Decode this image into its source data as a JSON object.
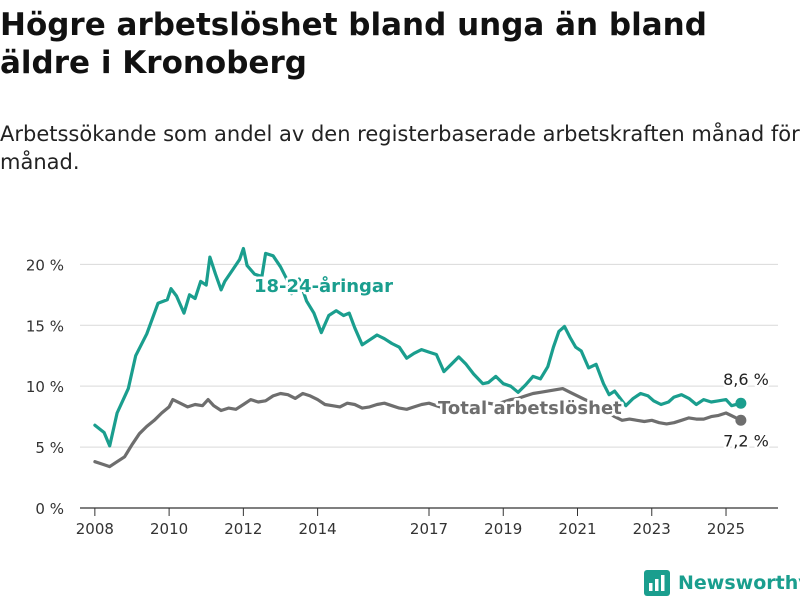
{
  "header": {
    "title": "Högre arbetslöshet bland unga än bland äldre i Kronoberg",
    "subtitle": "Arbetssökande som andel av den registerbaserade arbetskraften månad för månad."
  },
  "brand": {
    "name": "Newsworthy",
    "icon": "newsworthy-logo-icon"
  },
  "colors": {
    "youth": "#1a9e8e",
    "total": "#6e6e6e",
    "grid": "#d9d9d9",
    "axis": "#333333"
  },
  "chart_data": {
    "type": "line",
    "x_ticks": [
      "2008",
      "2010",
      "2012",
      "2014",
      "2017",
      "2019",
      "2021",
      "2023",
      "2025"
    ],
    "y_ticks": [
      "0 %",
      "5 %",
      "10 %",
      "15 %",
      "20 %"
    ],
    "ylim": [
      0,
      22
    ],
    "xlim": [
      2007.6,
      2026.4
    ],
    "grid": true,
    "series": [
      {
        "name": "18-24-åringar",
        "end_label": "8,6 %",
        "points": [
          [
            2008.0,
            6.8
          ],
          [
            2008.25,
            6.2
          ],
          [
            2008.4,
            5.1
          ],
          [
            2008.6,
            7.8
          ],
          [
            2008.9,
            9.8
          ],
          [
            2009.1,
            12.5
          ],
          [
            2009.4,
            14.3
          ],
          [
            2009.7,
            16.8
          ],
          [
            2009.95,
            17.1
          ],
          [
            2010.05,
            18.0
          ],
          [
            2010.2,
            17.4
          ],
          [
            2010.4,
            16.0
          ],
          [
            2010.55,
            17.5
          ],
          [
            2010.7,
            17.2
          ],
          [
            2010.85,
            18.6
          ],
          [
            2011.0,
            18.3
          ],
          [
            2011.1,
            20.6
          ],
          [
            2011.25,
            19.2
          ],
          [
            2011.4,
            17.9
          ],
          [
            2011.5,
            18.6
          ],
          [
            2011.7,
            19.5
          ],
          [
            2011.9,
            20.4
          ],
          [
            2012.0,
            21.3
          ],
          [
            2012.1,
            19.9
          ],
          [
            2012.3,
            19.2
          ],
          [
            2012.5,
            19.0
          ],
          [
            2012.6,
            20.9
          ],
          [
            2012.8,
            20.7
          ],
          [
            2013.0,
            19.8
          ],
          [
            2013.15,
            18.9
          ],
          [
            2013.3,
            17.6
          ],
          [
            2013.5,
            18.8
          ],
          [
            2013.7,
            17.0
          ],
          [
            2013.9,
            16.0
          ],
          [
            2014.1,
            14.4
          ],
          [
            2014.3,
            15.8
          ],
          [
            2014.5,
            16.2
          ],
          [
            2014.7,
            15.8
          ],
          [
            2014.85,
            16.0
          ],
          [
            2015.0,
            14.8
          ],
          [
            2015.2,
            13.4
          ],
          [
            2015.4,
            13.8
          ],
          [
            2015.6,
            14.2
          ],
          [
            2015.8,
            13.9
          ],
          [
            2016.0,
            13.5
          ],
          [
            2016.2,
            13.2
          ],
          [
            2016.4,
            12.3
          ],
          [
            2016.6,
            12.7
          ],
          [
            2016.8,
            13.0
          ],
          [
            2017.0,
            12.8
          ],
          [
            2017.2,
            12.6
          ],
          [
            2017.4,
            11.2
          ],
          [
            2017.6,
            11.8
          ],
          [
            2017.8,
            12.4
          ],
          [
            2018.0,
            11.8
          ],
          [
            2018.2,
            11.0
          ],
          [
            2018.45,
            10.2
          ],
          [
            2018.6,
            10.3
          ],
          [
            2018.8,
            10.8
          ],
          [
            2019.0,
            10.2
          ],
          [
            2019.2,
            10.0
          ],
          [
            2019.4,
            9.5
          ],
          [
            2019.6,
            10.1
          ],
          [
            2019.8,
            10.8
          ],
          [
            2020.0,
            10.6
          ],
          [
            2020.2,
            11.6
          ],
          [
            2020.35,
            13.2
          ],
          [
            2020.5,
            14.5
          ],
          [
            2020.65,
            14.9
          ],
          [
            2020.8,
            14.0
          ],
          [
            2020.95,
            13.2
          ],
          [
            2021.1,
            12.9
          ],
          [
            2021.3,
            11.5
          ],
          [
            2021.5,
            11.8
          ],
          [
            2021.7,
            10.2
          ],
          [
            2021.85,
            9.3
          ],
          [
            2022.0,
            9.6
          ],
          [
            2022.15,
            9.0
          ],
          [
            2022.3,
            8.4
          ],
          [
            2022.5,
            9.0
          ],
          [
            2022.7,
            9.4
          ],
          [
            2022.9,
            9.2
          ],
          [
            2023.05,
            8.8
          ],
          [
            2023.25,
            8.5
          ],
          [
            2023.45,
            8.7
          ],
          [
            2023.6,
            9.1
          ],
          [
            2023.8,
            9.3
          ],
          [
            2024.0,
            9.0
          ],
          [
            2024.2,
            8.5
          ],
          [
            2024.4,
            8.9
          ],
          [
            2024.6,
            8.7
          ],
          [
            2024.8,
            8.8
          ],
          [
            2025.0,
            8.9
          ],
          [
            2025.15,
            8.4
          ],
          [
            2025.4,
            8.6
          ]
        ]
      },
      {
        "name": "Total arbetslöshet",
        "end_label": "7,2 %",
        "points": [
          [
            2008.0,
            3.8
          ],
          [
            2008.2,
            3.6
          ],
          [
            2008.4,
            3.4
          ],
          [
            2008.6,
            3.8
          ],
          [
            2008.8,
            4.2
          ],
          [
            2009.0,
            5.2
          ],
          [
            2009.2,
            6.1
          ],
          [
            2009.4,
            6.7
          ],
          [
            2009.6,
            7.2
          ],
          [
            2009.8,
            7.8
          ],
          [
            2010.0,
            8.3
          ],
          [
            2010.1,
            8.9
          ],
          [
            2010.3,
            8.6
          ],
          [
            2010.5,
            8.3
          ],
          [
            2010.7,
            8.5
          ],
          [
            2010.9,
            8.4
          ],
          [
            2011.05,
            8.9
          ],
          [
            2011.2,
            8.4
          ],
          [
            2011.4,
            8.0
          ],
          [
            2011.6,
            8.2
          ],
          [
            2011.8,
            8.1
          ],
          [
            2012.0,
            8.5
          ],
          [
            2012.2,
            8.9
          ],
          [
            2012.4,
            8.7
          ],
          [
            2012.6,
            8.8
          ],
          [
            2012.8,
            9.2
          ],
          [
            2013.0,
            9.4
          ],
          [
            2013.2,
            9.3
          ],
          [
            2013.4,
            9.0
          ],
          [
            2013.6,
            9.4
          ],
          [
            2013.8,
            9.2
          ],
          [
            2014.0,
            8.9
          ],
          [
            2014.2,
            8.5
          ],
          [
            2014.4,
            8.4
          ],
          [
            2014.6,
            8.3
          ],
          [
            2014.8,
            8.6
          ],
          [
            2015.0,
            8.5
          ],
          [
            2015.2,
            8.2
          ],
          [
            2015.4,
            8.3
          ],
          [
            2015.6,
            8.5
          ],
          [
            2015.8,
            8.6
          ],
          [
            2016.0,
            8.4
          ],
          [
            2016.2,
            8.2
          ],
          [
            2016.4,
            8.1
          ],
          [
            2016.6,
            8.3
          ],
          [
            2016.8,
            8.5
          ],
          [
            2017.0,
            8.6
          ],
          [
            2017.2,
            8.4
          ],
          [
            2017.4,
            8.2
          ],
          [
            2017.6,
            8.3
          ],
          [
            2017.8,
            8.5
          ],
          [
            2018.0,
            8.3
          ],
          [
            2018.2,
            8.2
          ],
          [
            2018.4,
            8.4
          ],
          [
            2018.6,
            8.6
          ],
          [
            2018.8,
            8.5
          ],
          [
            2019.0,
            8.7
          ],
          [
            2019.2,
            8.9
          ],
          [
            2019.4,
            9.0
          ],
          [
            2019.6,
            9.2
          ],
          [
            2019.8,
            9.4
          ],
          [
            2020.0,
            9.5
          ],
          [
            2020.2,
            9.6
          ],
          [
            2020.4,
            9.7
          ],
          [
            2020.6,
            9.8
          ],
          [
            2020.8,
            9.5
          ],
          [
            2021.0,
            9.2
          ],
          [
            2021.2,
            8.9
          ],
          [
            2021.4,
            8.6
          ],
          [
            2021.6,
            8.3
          ],
          [
            2021.8,
            7.9
          ],
          [
            2022.0,
            7.5
          ],
          [
            2022.2,
            7.2
          ],
          [
            2022.4,
            7.3
          ],
          [
            2022.6,
            7.2
          ],
          [
            2022.8,
            7.1
          ],
          [
            2023.0,
            7.2
          ],
          [
            2023.2,
            7.0
          ],
          [
            2023.4,
            6.9
          ],
          [
            2023.6,
            7.0
          ],
          [
            2023.8,
            7.2
          ],
          [
            2024.0,
            7.4
          ],
          [
            2024.2,
            7.3
          ],
          [
            2024.4,
            7.3
          ],
          [
            2024.6,
            7.5
          ],
          [
            2024.8,
            7.6
          ],
          [
            2025.0,
            7.8
          ],
          [
            2025.2,
            7.5
          ],
          [
            2025.4,
            7.2
          ]
        ]
      }
    ]
  }
}
